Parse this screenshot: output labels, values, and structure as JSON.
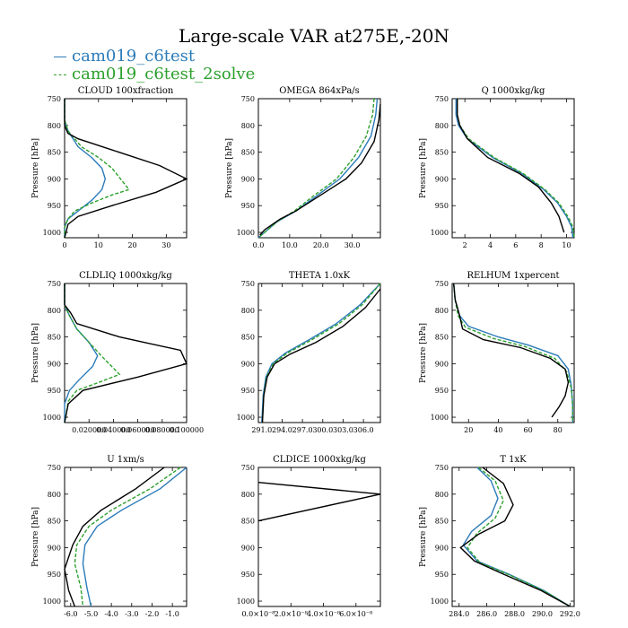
{
  "title": "Large-scale VAR at275E,-20N",
  "legend": [
    {
      "label": "cam019_c6test",
      "color": "#2b7bb9"
    },
    {
      "label": "cam019_c6test_2solve",
      "color": "#2ca02c"
    }
  ],
  "y_axis_label": "Pressure [hPa]",
  "chart_data": [
    {
      "type": "line",
      "title": "CLOUD  100xfraction",
      "ylabel": "Pressure [hPa]",
      "xlim": [
        0,
        36
      ],
      "ylim": [
        1010,
        750
      ],
      "xticks": [
        0,
        10,
        20,
        30
      ],
      "xticklabels": [
        "0",
        "10",
        "20",
        "30"
      ],
      "yticks": [
        750,
        800,
        850,
        900,
        950,
        1000
      ],
      "yticklabels": [
        "750",
        "800",
        "850",
        "900",
        "950",
        "1000"
      ],
      "series": [
        {
          "name": "cam019_c6test",
          "color": "#2b7bb9",
          "dash": "",
          "x": [
            0,
            0,
            1,
            4,
            8,
            11,
            12,
            11,
            8,
            4,
            1,
            0,
            0
          ],
          "y": [
            750,
            790,
            810,
            840,
            860,
            880,
            900,
            920,
            940,
            960,
            975,
            990,
            1010
          ]
        },
        {
          "name": "cam019_c6test_2solve",
          "color": "#2ca02c",
          "dash": "4,2",
          "x": [
            0,
            0,
            1,
            5,
            10,
            14,
            19,
            14,
            8,
            3,
            1,
            0,
            0
          ],
          "y": [
            750,
            790,
            810,
            840,
            860,
            880,
            920,
            930,
            945,
            960,
            975,
            990,
            1010
          ]
        },
        {
          "name": "black",
          "color": "#000000",
          "dash": "",
          "x": [
            0,
            0,
            1,
            4,
            16,
            28,
            36,
            27,
            14,
            4,
            1,
            0
          ],
          "y": [
            750,
            800,
            815,
            825,
            850,
            875,
            900,
            925,
            950,
            970,
            985,
            1010
          ]
        }
      ]
    },
    {
      "type": "line",
      "title": "OMEGA  864xPa/s",
      "ylabel": "Pressure [hPa]",
      "xlim": [
        0,
        39
      ],
      "ylim": [
        1010,
        750
      ],
      "xticks": [
        0,
        10,
        20,
        30
      ],
      "xticklabels": [
        "0.0",
        "10.0",
        "20.0",
        "30.0"
      ],
      "yticks": [
        750,
        800,
        850,
        900,
        950,
        1000
      ],
      "yticklabels": [
        "750",
        "800",
        "850",
        "900",
        "950",
        "1000"
      ],
      "series": [
        {
          "name": "cam019_c6test",
          "color": "#2b7bb9",
          "dash": "",
          "x": [
            38,
            37.5,
            36,
            32,
            26,
            19,
            12,
            6,
            2,
            0
          ],
          "y": [
            750,
            780,
            820,
            860,
            900,
            930,
            960,
            980,
            1000,
            1010
          ]
        },
        {
          "name": "cam019_c6test_2solve",
          "color": "#2ca02c",
          "dash": "4,2",
          "x": [
            37,
            36.5,
            34.5,
            30.5,
            25,
            18,
            11.5,
            6,
            2,
            0
          ],
          "y": [
            750,
            780,
            820,
            860,
            900,
            930,
            960,
            980,
            1000,
            1010
          ]
        },
        {
          "name": "black",
          "color": "#000000",
          "dash": "",
          "x": [
            39,
            38.5,
            37,
            33,
            28,
            20,
            12,
            7,
            2,
            0.5
          ],
          "y": [
            760,
            790,
            830,
            870,
            900,
            930,
            960,
            975,
            995,
            1005
          ]
        }
      ]
    },
    {
      "type": "line",
      "title": "Q  1000xkg/kg",
      "ylabel": "Pressure [hPa]",
      "xlim": [
        1,
        10.6
      ],
      "ylim": [
        1010,
        750
      ],
      "xticks": [
        2,
        4,
        6,
        8,
        10
      ],
      "xticklabels": [
        "2",
        "4",
        "6",
        "8",
        "10"
      ],
      "yticks": [
        750,
        800,
        850,
        900,
        950,
        1000
      ],
      "yticklabels": [
        "750",
        "800",
        "850",
        "900",
        "950",
        "1000"
      ],
      "series": [
        {
          "name": "cam019_c6test",
          "color": "#2b7bb9",
          "dash": "",
          "x": [
            1.3,
            1.3,
            1.5,
            2.2,
            4.2,
            6.5,
            8.2,
            9.3,
            10.0,
            10.4,
            10.5
          ],
          "y": [
            750,
            780,
            800,
            825,
            860,
            890,
            920,
            945,
            970,
            990,
            1010
          ]
        },
        {
          "name": "cam019_c6test_2solve",
          "color": "#2ca02c",
          "dash": "4,2",
          "x": [
            1.4,
            1.4,
            1.6,
            2.3,
            4.3,
            6.6,
            8.3,
            9.4,
            10.1,
            10.5,
            10.6
          ],
          "y": [
            750,
            780,
            800,
            825,
            860,
            890,
            920,
            945,
            970,
            990,
            1010
          ]
        },
        {
          "name": "black",
          "color": "#000000",
          "dash": "",
          "x": [
            1.4,
            1.4,
            1.6,
            2.2,
            3.8,
            6.3,
            7.8,
            8.8,
            9.4,
            9.8
          ],
          "y": [
            750,
            780,
            800,
            825,
            860,
            890,
            915,
            945,
            970,
            1000
          ]
        }
      ]
    },
    {
      "type": "line",
      "title": "CLDLIQ  1000xkg/kg",
      "ylabel": "Pressure [hPa]",
      "xlim": [
        0,
        0.1
      ],
      "ylim": [
        1010,
        750
      ],
      "xticks": [
        0.02,
        0.04,
        0.06,
        0.08,
        0.1
      ],
      "xticklabels": [
        "0.020000",
        "0.040000",
        "0.060000",
        "0.080000",
        "0.100000"
      ],
      "yticks": [
        750,
        800,
        850,
        900,
        950,
        1000
      ],
      "yticklabels": [
        "750",
        "800",
        "850",
        "900",
        "950",
        "1000"
      ],
      "series": [
        {
          "name": "cam019_c6test",
          "color": "#2b7bb9",
          "dash": "",
          "x": [
            0,
            0,
            0.004,
            0.01,
            0.02,
            0.027,
            0.023,
            0.012,
            0.004,
            0,
            0
          ],
          "y": [
            750,
            790,
            810,
            835,
            860,
            885,
            905,
            930,
            950,
            975,
            1010
          ]
        },
        {
          "name": "cam019_c6test_2solve",
          "color": "#2ca02c",
          "dash": "4,2",
          "x": [
            0,
            0,
            0.004,
            0.01,
            0.02,
            0.03,
            0.045,
            0.028,
            0.01,
            0.003,
            0
          ],
          "y": [
            750,
            790,
            810,
            835,
            860,
            885,
            920,
            935,
            950,
            970,
            1010
          ]
        },
        {
          "name": "black",
          "color": "#000000",
          "dash": "",
          "x": [
            0,
            0,
            0.005,
            0.01,
            0.045,
            0.095,
            0.1,
            0.06,
            0.015,
            0.003,
            0
          ],
          "y": [
            750,
            790,
            805,
            825,
            850,
            875,
            900,
            925,
            950,
            975,
            1010
          ]
        }
      ]
    },
    {
      "type": "line",
      "title": "THETA  1.0xK",
      "ylabel": "",
      "xlim": [
        290.5,
        308.5
      ],
      "ylim": [
        1010,
        750
      ],
      "xticks": [
        291,
        294,
        297,
        300,
        303,
        306
      ],
      "xticklabels": [
        "291.0",
        "294.0",
        "297.0",
        "300.0",
        "303.0",
        "306.0"
      ],
      "yticks": [
        750,
        800,
        850,
        900,
        950,
        1000
      ],
      "yticklabels": [
        "750",
        "800",
        "850",
        "900",
        "950",
        "1000"
      ],
      "series": [
        {
          "name": "cam019_c6test",
          "color": "#2b7bb9",
          "dash": "",
          "x": [
            308.5,
            305.5,
            302,
            298,
            294.5,
            292.5,
            291.6,
            291.2,
            291.0
          ],
          "y": [
            750,
            790,
            825,
            855,
            880,
            900,
            925,
            960,
            1010
          ]
        },
        {
          "name": "cam019_c6test_2solve",
          "color": "#2ca02c",
          "dash": "4,2",
          "x": [
            308.5,
            305.8,
            302.4,
            298.4,
            294.8,
            292.7,
            291.7,
            291.3,
            291.1
          ],
          "y": [
            750,
            790,
            825,
            855,
            880,
            900,
            925,
            960,
            1010
          ]
        },
        {
          "name": "black",
          "color": "#000000",
          "dash": "",
          "x": [
            308.5,
            306.3,
            303,
            299,
            295.2,
            292.9,
            291.8,
            291.3,
            291.1
          ],
          "y": [
            760,
            795,
            830,
            860,
            882,
            900,
            925,
            960,
            1010
          ]
        }
      ]
    },
    {
      "type": "line",
      "title": "RELHUM  1xpercent",
      "ylabel": "Pressure [hPa]",
      "xlim": [
        9,
        91
      ],
      "ylim": [
        1010,
        750
      ],
      "xticks": [
        20,
        40,
        60,
        80
      ],
      "xticklabels": [
        "20",
        "40",
        "60",
        "80"
      ],
      "yticks": [
        750,
        800,
        850,
        900,
        950,
        1000
      ],
      "yticklabels": [
        "750",
        "800",
        "850",
        "900",
        "950",
        "1000"
      ],
      "series": [
        {
          "name": "cam019_c6test",
          "color": "#2b7bb9",
          "dash": "",
          "x": [
            10,
            11,
            14,
            20,
            40,
            60,
            80,
            87,
            89,
            90,
            90
          ],
          "y": [
            750,
            780,
            810,
            830,
            850,
            865,
            885,
            910,
            940,
            975,
            1010
          ]
        },
        {
          "name": "cam019_c6test_2solve",
          "color": "#2ca02c",
          "dash": "4,2",
          "x": [
            10,
            11,
            13,
            18,
            37,
            58,
            78,
            86,
            89,
            90,
            90
          ],
          "y": [
            750,
            780,
            810,
            832,
            853,
            868,
            890,
            915,
            945,
            980,
            1010
          ]
        },
        {
          "name": "black",
          "color": "#000000",
          "dash": "",
          "x": [
            10,
            11,
            14,
            16,
            30,
            55,
            75,
            85,
            87,
            85,
            81,
            76
          ],
          "y": [
            750,
            780,
            810,
            835,
            855,
            870,
            890,
            910,
            935,
            960,
            980,
            1000
          ]
        }
      ]
    },
    {
      "type": "line",
      "title": "U  1xm/s",
      "ylabel": "Pressure [hPa]",
      "xlim": [
        -6.3,
        -0.3
      ],
      "ylim": [
        1010,
        750
      ],
      "xticks": [
        -6,
        -5,
        -4,
        -3,
        -2,
        -1
      ],
      "xticklabels": [
        "-6.0",
        "-5.0",
        "-4.0",
        "-3.0",
        "-2.0",
        "-1.0"
      ],
      "yticks": [
        750,
        800,
        850,
        900,
        950,
        1000
      ],
      "yticklabels": [
        "750",
        "800",
        "850",
        "900",
        "950",
        "1000"
      ],
      "series": [
        {
          "name": "cam019_c6test",
          "color": "#2b7bb9",
          "dash": "",
          "x": [
            -0.3,
            -1.6,
            -3.5,
            -4.7,
            -5.3,
            -5.4,
            -5.2,
            -5.0
          ],
          "y": [
            750,
            790,
            830,
            860,
            895,
            930,
            975,
            1010
          ]
        },
        {
          "name": "cam019_c6test_2solve",
          "color": "#2ca02c",
          "dash": "4,2",
          "x": [
            -0.6,
            -2.1,
            -4.0,
            -5.1,
            -5.7,
            -5.8,
            -5.5,
            -5.4
          ],
          "y": [
            750,
            790,
            830,
            860,
            895,
            930,
            975,
            1010
          ]
        },
        {
          "name": "black",
          "color": "#000000",
          "dash": "",
          "x": [
            -1.4,
            -2.8,
            -4.5,
            -5.4,
            -5.9,
            -6.3,
            -6.1,
            -5.8
          ],
          "y": [
            750,
            790,
            830,
            860,
            895,
            940,
            980,
            1010
          ]
        }
      ]
    },
    {
      "type": "line",
      "title": "CLDICE  1000xkg/kg",
      "ylabel": "",
      "xlim": [
        0,
        7.5e-08
      ],
      "ylim": [
        1010,
        750
      ],
      "xticks": [
        0,
        2e-08,
        4e-08,
        6e-08
      ],
      "xticklabels": [
        "0.0×10⁻⁸",
        "2.0×10⁻⁸",
        "4.0×10⁻⁸",
        "6.0×10⁻⁸"
      ],
      "yticks": [
        750,
        800,
        850,
        900,
        950,
        1000
      ],
      "yticklabels": [
        "750",
        "800",
        "850",
        "900",
        "950",
        "1000"
      ],
      "series": [
        {
          "name": "black",
          "color": "#000000",
          "dash": "",
          "x": [
            0,
            7.5e-08,
            0
          ],
          "y": [
            778,
            800,
            850
          ]
        }
      ]
    },
    {
      "type": "line",
      "title": "T  1xK",
      "ylabel": "Pressure [hPa]",
      "xlim": [
        283.5,
        292.3
      ],
      "ylim": [
        1010,
        750
      ],
      "xticks": [
        284,
        286,
        288,
        290,
        292
      ],
      "xticklabels": [
        "284.0",
        "286.0",
        "288.0",
        "290.0",
        "292.0"
      ],
      "yticks": [
        750,
        800,
        850,
        900,
        950,
        1000
      ],
      "yticklabels": [
        "750",
        "800",
        "850",
        "900",
        "950",
        "1000"
      ],
      "series": [
        {
          "name": "cam019_c6test",
          "color": "#2b7bb9",
          "dash": "",
          "x": [
            285.3,
            286.3,
            286.8,
            286.3,
            284.9,
            284.3,
            285.3,
            287.6,
            290.1,
            292.0
          ],
          "y": [
            750,
            775,
            808,
            840,
            870,
            895,
            925,
            950,
            980,
            1010
          ]
        },
        {
          "name": "cam019_c6test_2solve",
          "color": "#2ca02c",
          "dash": "4,2",
          "x": [
            285.4,
            286.6,
            287.2,
            286.6,
            285.3,
            284.6,
            285.5,
            287.8,
            290.2,
            292.0
          ],
          "y": [
            750,
            775,
            812,
            845,
            873,
            900,
            928,
            953,
            982,
            1010
          ]
        },
        {
          "name": "black",
          "color": "#000000",
          "dash": "",
          "x": [
            285.7,
            287.2,
            287.9,
            287.3,
            285.4,
            284.1,
            285.1,
            287.4,
            289.9,
            292.0
          ],
          "y": [
            750,
            780,
            820,
            850,
            875,
            900,
            925,
            952,
            980,
            1010
          ]
        }
      ]
    }
  ]
}
